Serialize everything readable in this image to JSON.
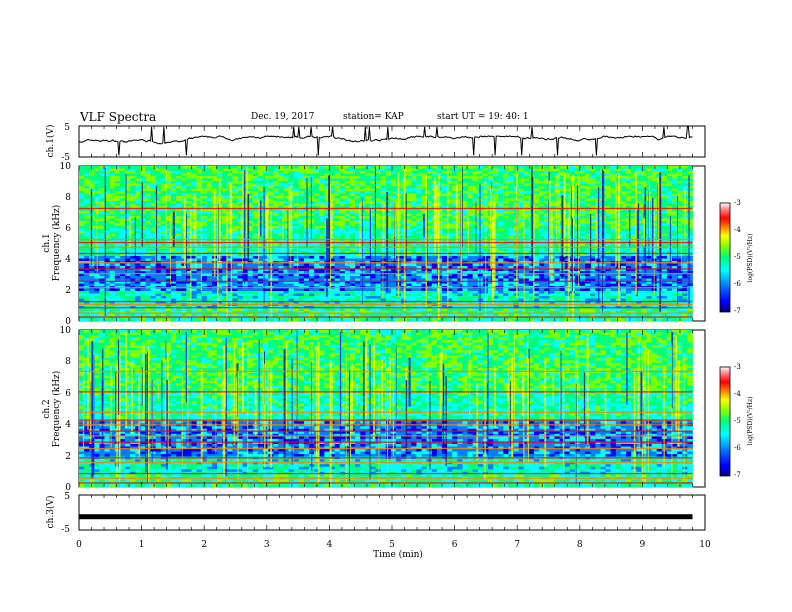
{
  "header": {
    "title": "VLF Spectra",
    "date": "Dec. 19, 2017",
    "station": "station= KAP",
    "start": "start  UT  =   19: 40: 1"
  },
  "chart_data": [
    {
      "type": "line",
      "name": "ch1-voltage",
      "ylabel": "ch.1(V)",
      "ylim": [
        -5,
        5
      ],
      "yticks": [
        "5",
        "-5"
      ],
      "xlim": [
        0,
        10
      ],
      "note_range": [
        -0.8,
        1.8
      ]
    },
    {
      "type": "heatmap",
      "name": "ch1-spectrogram",
      "ylabel_line1": "ch.1",
      "ylabel_line2": "Frequency  (kHz)",
      "ylim": [
        0,
        10
      ],
      "yticks": [
        "0",
        "2",
        "4",
        "6",
        "8",
        "10"
      ],
      "xlim": [
        0,
        9.8
      ],
      "bands_khz": [
        0.3,
        0.55,
        0.9,
        1.1,
        1.3,
        2.2,
        2.6,
        3.1,
        3.4,
        3.8,
        4.4,
        4.8,
        5.1,
        5.3,
        7.3
      ],
      "colorbar": {
        "label": "log(PSD)(V²/Hz)",
        "range": [
          -7,
          -3
        ],
        "ticks": [
          "-3",
          "-4",
          "-5",
          "-6",
          "-7"
        ]
      }
    },
    {
      "type": "heatmap",
      "name": "ch2-spectrogram",
      "ylabel_line1": "ch.2",
      "ylabel_line2": "Frequency  (kHz)",
      "ylim": [
        0,
        10
      ],
      "yticks": [
        "0",
        "2",
        "4",
        "6",
        "8",
        "10"
      ],
      "xlim": [
        0,
        9.8
      ],
      "bands_khz": [
        0.3,
        0.6,
        0.9,
        1.6,
        1.9,
        2.5,
        2.9,
        3.3,
        3.6,
        4.0,
        4.3,
        4.8,
        6.1,
        7.4
      ],
      "colorbar": {
        "label": "log(PSD)(V²/Hz)",
        "range": [
          -7,
          -3
        ],
        "ticks": [
          "-3",
          "-4",
          "-5",
          "-6",
          "-7"
        ]
      }
    },
    {
      "type": "line",
      "name": "ch3-voltage",
      "ylabel": "ch.3(V)",
      "ylim": [
        -5,
        5
      ],
      "yticks": [
        "5",
        "-5"
      ],
      "xlim": [
        0,
        9.8
      ],
      "level": -1.2
    },
    {
      "type": "axis",
      "name": "time-axis",
      "xlabel": "Time  (min)",
      "xlim": [
        0,
        10
      ],
      "xticks": [
        "0",
        "1",
        "2",
        "3",
        "4",
        "5",
        "6",
        "7",
        "8",
        "9",
        "10"
      ]
    }
  ],
  "colors": {
    "scale": [
      "#000080",
      "#0000ff",
      "#0080ff",
      "#00ffff",
      "#00ff80",
      "#80ff00",
      "#ffff00",
      "#ff8000",
      "#ff0000",
      "#ff8080",
      "#ffffff"
    ]
  }
}
